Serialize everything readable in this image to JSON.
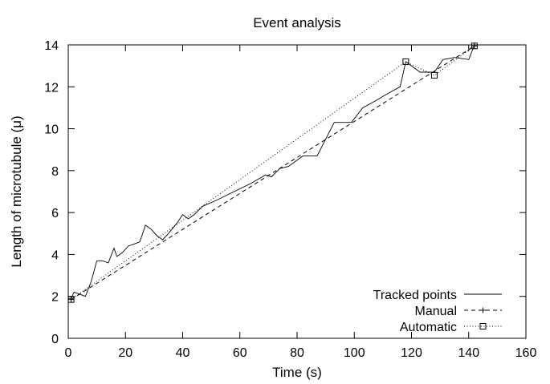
{
  "chart_data": {
    "type": "line",
    "title": "Event analysis",
    "xlabel": "Time (s)",
    "ylabel": "Length of microtubule (μ)",
    "xlim": [
      0,
      160
    ],
    "ylim": [
      0,
      14
    ],
    "xticks": [
      "0",
      "20",
      "40",
      "60",
      "80",
      "100",
      "120",
      "140",
      "160"
    ],
    "yticks": [
      "0",
      "2",
      "4",
      "6",
      "8",
      "10",
      "12",
      "14"
    ],
    "grid": false,
    "legend_position": "bottom-right",
    "series": [
      {
        "name": "Tracked points",
        "style": "solid",
        "marker": "none",
        "color": "#000000",
        "x": [
          0,
          1,
          2,
          4,
          6,
          8,
          10,
          12,
          14,
          16,
          17,
          19,
          21,
          23,
          25,
          27,
          29,
          31,
          33,
          35,
          38,
          40,
          42,
          44,
          47,
          52,
          58,
          64,
          69,
          71,
          74,
          77,
          82,
          87,
          93,
          95,
          99,
          103,
          107,
          112,
          116,
          118,
          123,
          128,
          131,
          135,
          140,
          142
        ],
        "y": [
          1.9,
          1.9,
          2.2,
          2.1,
          2.0,
          2.7,
          3.7,
          3.7,
          3.6,
          4.3,
          3.9,
          4.1,
          4.4,
          4.5,
          4.6,
          5.4,
          5.2,
          4.9,
          4.7,
          5.0,
          5.5,
          5.9,
          5.7,
          5.9,
          6.3,
          6.6,
          7.0,
          7.4,
          7.8,
          7.7,
          8.1,
          8.2,
          8.7,
          8.7,
          10.3,
          10.3,
          10.3,
          11.0,
          11.3,
          11.7,
          12.0,
          13.2,
          12.7,
          12.7,
          13.3,
          13.4,
          13.3,
          14.0
        ]
      },
      {
        "name": "Manual",
        "style": "dashed",
        "marker": "plus",
        "color": "#000000",
        "x": [
          1,
          142
        ],
        "y": [
          1.85,
          13.95
        ]
      },
      {
        "name": "Automatic",
        "style": "dotted",
        "marker": "square",
        "color": "#000000",
        "x": [
          1,
          118,
          128,
          142
        ],
        "y": [
          1.85,
          13.2,
          12.55,
          13.95
        ]
      }
    ]
  }
}
